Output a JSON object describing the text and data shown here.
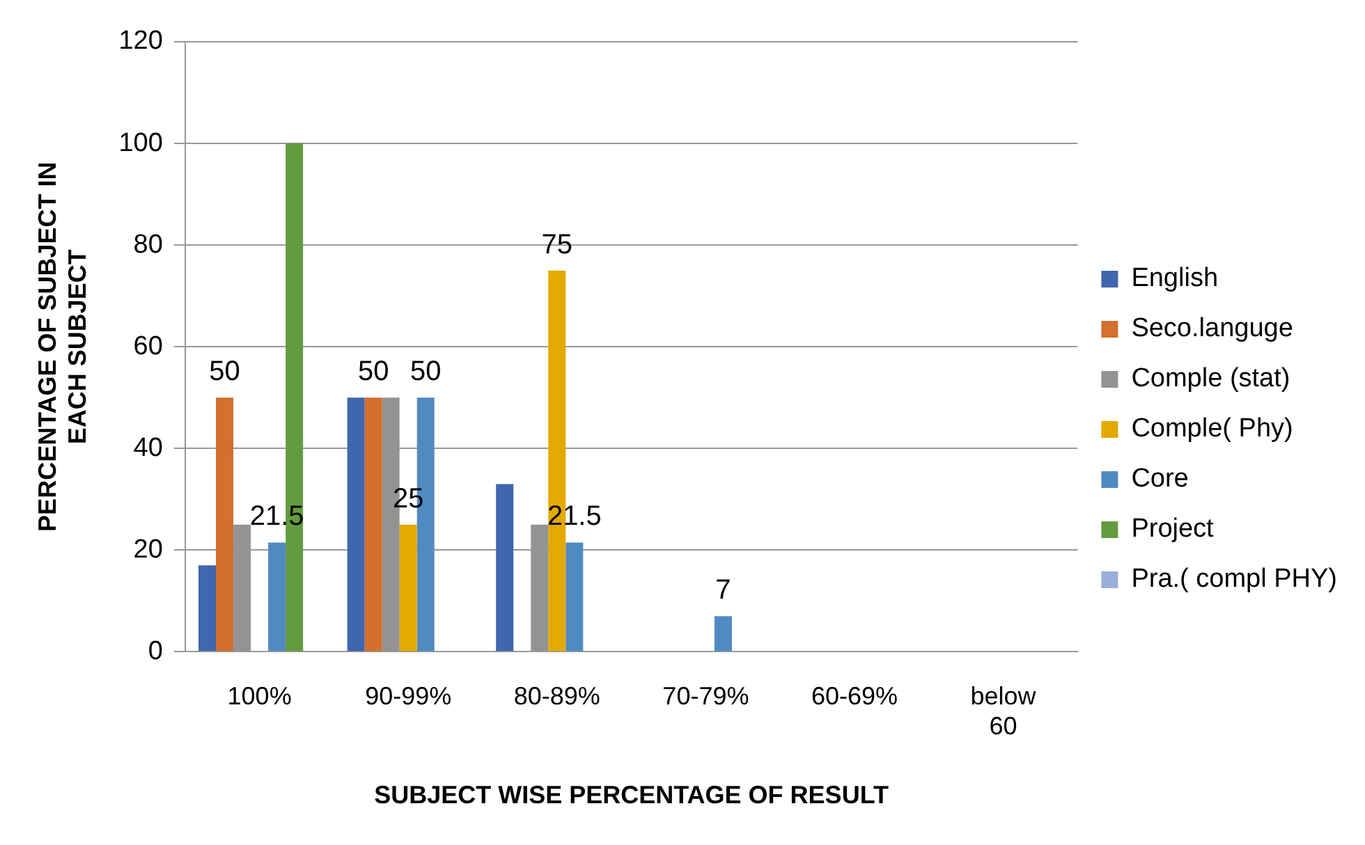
{
  "chart_data": {
    "type": "bar",
    "xlabel": "SUBJECT WISE PERCENTAGE OF RESULT",
    "ylabel": "PERCENTAGE OF SUBJECT IN EACH SUBJECT",
    "categories": [
      "100%",
      "90-99%",
      "80-89%",
      "70-79%",
      "60-69%",
      "below 60"
    ],
    "series": [
      {
        "name": "English",
        "color": "#3f66ae",
        "values": [
          17,
          50,
          33,
          0,
          0,
          0
        ]
      },
      {
        "name": "Seco.languge",
        "color": "#d2702d",
        "values": [
          50,
          50,
          0,
          0,
          0,
          0
        ],
        "value_labels": [
          "50",
          "50",
          null,
          null,
          null,
          null
        ]
      },
      {
        "name": "Comple (stat)",
        "color": "#939393",
        "values": [
          25,
          50,
          25,
          0,
          0,
          0
        ]
      },
      {
        "name": "Comple( Phy)",
        "color": "#e3a900",
        "values": [
          0,
          25,
          75,
          0,
          0,
          0
        ],
        "value_labels": [
          null,
          "25",
          "75",
          null,
          null,
          null
        ]
      },
      {
        "name": "Core",
        "color": "#4f8bc1",
        "values": [
          21.5,
          50,
          21.5,
          7,
          0,
          0
        ],
        "value_labels": [
          "21.5",
          "50",
          "21.5",
          "7",
          null,
          null
        ]
      },
      {
        "name": "Project",
        "color": "#659b3f",
        "values": [
          100,
          0,
          0,
          0,
          0,
          0
        ]
      },
      {
        "name": "Pra.( compl PHY)",
        "color": "#9aaedb",
        "values": [
          0,
          0,
          0,
          0,
          0,
          0
        ]
      }
    ],
    "ylim": [
      0,
      120
    ],
    "yticks": [
      0,
      20,
      40,
      60,
      80,
      100,
      120
    ],
    "grid": "y",
    "legend": "right"
  }
}
